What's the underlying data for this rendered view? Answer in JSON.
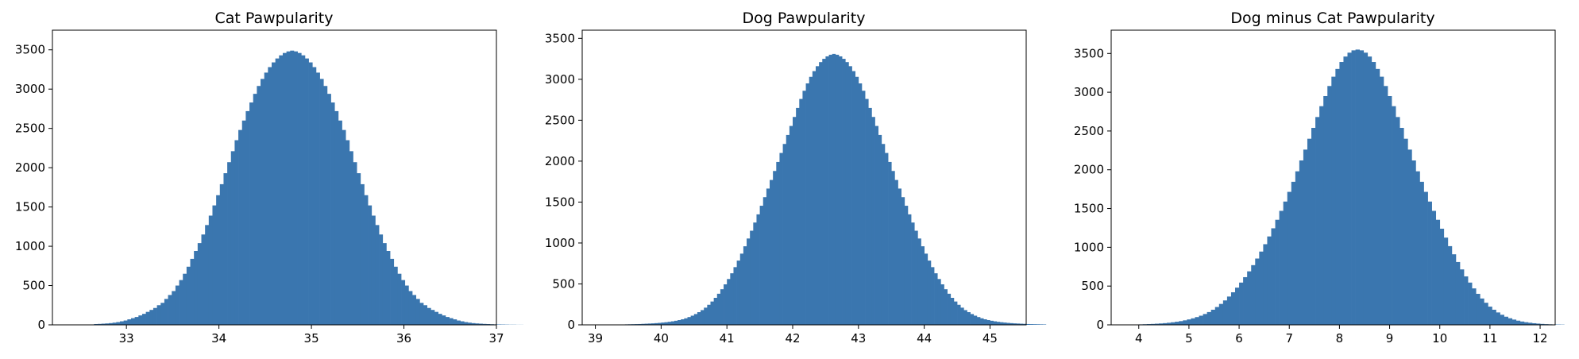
{
  "chart_data": [
    {
      "type": "histogram",
      "title": "Cat Pawpularity",
      "xlabel": "",
      "ylabel": "",
      "xlim": [
        32.2,
        37.0
      ],
      "ylim": [
        0,
        3750
      ],
      "x_ticks": [
        33,
        34,
        35,
        36,
        37
      ],
      "y_ticks": [
        0,
        500,
        1000,
        1500,
        2000,
        2500,
        3000,
        3500
      ],
      "color": "#3a76af",
      "bin_start": 32.65,
      "bin_width": 0.04,
      "counts": [
        10,
        12,
        15,
        18,
        22,
        28,
        35,
        45,
        55,
        70,
        85,
        100,
        120,
        140,
        165,
        190,
        215,
        250,
        280,
        330,
        380,
        430,
        500,
        570,
        650,
        740,
        840,
        940,
        1040,
        1150,
        1270,
        1390,
        1520,
        1650,
        1790,
        1930,
        2070,
        2210,
        2350,
        2480,
        2600,
        2720,
        2830,
        2940,
        3040,
        3130,
        3210,
        3280,
        3340,
        3390,
        3430,
        3460,
        3480,
        3490,
        3480,
        3460,
        3430,
        3390,
        3340,
        3280,
        3210,
        3130,
        3040,
        2940,
        2830,
        2720,
        2600,
        2480,
        2350,
        2210,
        2070,
        1930,
        1790,
        1650,
        1520,
        1390,
        1270,
        1150,
        1040,
        940,
        840,
        740,
        650,
        570,
        500,
        430,
        380,
        330,
        280,
        250,
        215,
        190,
        165,
        140,
        120,
        100,
        85,
        70,
        55,
        45,
        35,
        28,
        22,
        18,
        15,
        12,
        10,
        8,
        6,
        5,
        4,
        3,
        2,
        2,
        1,
        1
      ]
    },
    {
      "type": "histogram",
      "title": "Dog Pawpularity",
      "xlabel": "",
      "ylabel": "",
      "xlim": [
        38.8,
        45.55
      ],
      "ylim": [
        0,
        3600
      ],
      "x_ticks": [
        39,
        40,
        41,
        42,
        43,
        44,
        45
      ],
      "y_ticks": [
        0,
        500,
        1000,
        1500,
        2000,
        2500,
        3000,
        3500
      ],
      "color": "#3a76af",
      "bin_start": 39.45,
      "bin_width": 0.05,
      "counts": [
        6,
        7,
        8,
        9,
        10,
        12,
        14,
        16,
        18,
        21,
        24,
        28,
        32,
        37,
        43,
        50,
        58,
        68,
        80,
        95,
        112,
        132,
        155,
        180,
        210,
        245,
        285,
        330,
        380,
        435,
        495,
        560,
        630,
        705,
        785,
        870,
        960,
        1055,
        1150,
        1250,
        1350,
        1455,
        1560,
        1665,
        1770,
        1880,
        1990,
        2100,
        2210,
        2320,
        2430,
        2540,
        2650,
        2760,
        2860,
        2950,
        3030,
        3100,
        3160,
        3210,
        3250,
        3280,
        3300,
        3310,
        3300,
        3280,
        3250,
        3210,
        3160,
        3100,
        3030,
        2950,
        2860,
        2760,
        2650,
        2540,
        2430,
        2320,
        2210,
        2100,
        1990,
        1880,
        1770,
        1665,
        1560,
        1455,
        1350,
        1250,
        1150,
        1055,
        960,
        870,
        785,
        705,
        630,
        560,
        495,
        435,
        380,
        330,
        285,
        245,
        210,
        180,
        155,
        132,
        112,
        95,
        80,
        68,
        58,
        50,
        43,
        37,
        32,
        28,
        24,
        21,
        18,
        16,
        14,
        12,
        10,
        9,
        8,
        7,
        6,
        5
      ]
    },
    {
      "type": "histogram",
      "title": "Dog minus Cat Pawpularity",
      "xlabel": "",
      "ylabel": "",
      "xlim": [
        3.45,
        12.3
      ],
      "ylim": [
        0,
        3800
      ],
      "x_ticks": [
        4,
        5,
        6,
        7,
        8,
        9,
        10,
        11,
        12
      ],
      "y_ticks": [
        0,
        500,
        1000,
        1500,
        2000,
        2500,
        3000,
        3500
      ],
      "color": "#3a76af",
      "bin_start": 4.0,
      "bin_width": 0.08,
      "counts": [
        6,
        8,
        10,
        12,
        15,
        18,
        22,
        27,
        33,
        40,
        48,
        58,
        70,
        84,
        100,
        118,
        140,
        165,
        195,
        230,
        270,
        315,
        365,
        420,
        480,
        545,
        615,
        690,
        770,
        855,
        945,
        1040,
        1140,
        1245,
        1355,
        1470,
        1590,
        1715,
        1845,
        1980,
        2120,
        2260,
        2400,
        2540,
        2680,
        2820,
        2950,
        3080,
        3200,
        3300,
        3390,
        3460,
        3510,
        3540,
        3550,
        3540,
        3510,
        3460,
        3390,
        3300,
        3200,
        3080,
        2950,
        2820,
        2680,
        2540,
        2400,
        2260,
        2120,
        1980,
        1845,
        1715,
        1590,
        1470,
        1355,
        1240,
        1125,
        1015,
        910,
        810,
        715,
        625,
        545,
        470,
        400,
        340,
        285,
        235,
        195,
        160,
        130,
        105,
        85,
        68,
        54,
        43,
        34,
        27,
        21,
        16,
        12,
        9,
        7,
        5,
        4,
        3
      ]
    }
  ]
}
